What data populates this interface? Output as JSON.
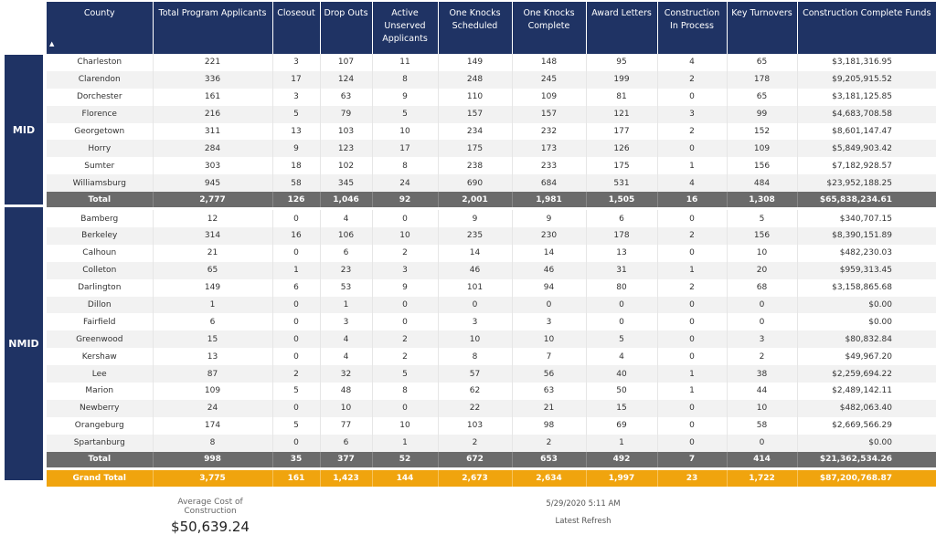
{
  "groups": {
    "mid": "MID",
    "nmid": "NMID"
  },
  "columns": [
    "County",
    "Total Program Applicants",
    "Closeout",
    "Drop Outs",
    "Active Unserved Applicants",
    "One Knocks Scheduled",
    "One Knocks Complete",
    "Award Letters",
    "Construction In Process",
    "Key Turnovers",
    "Construction Complete Funds"
  ],
  "sort_indicator": "▲",
  "mid_rows": [
    [
      "Charleston",
      "221",
      "3",
      "107",
      "11",
      "149",
      "148",
      "95",
      "4",
      "65",
      "$3,181,316.95"
    ],
    [
      "Clarendon",
      "336",
      "17",
      "124",
      "8",
      "248",
      "245",
      "199",
      "2",
      "178",
      "$9,205,915.52"
    ],
    [
      "Dorchester",
      "161",
      "3",
      "63",
      "9",
      "110",
      "109",
      "81",
      "0",
      "65",
      "$3,181,125.85"
    ],
    [
      "Florence",
      "216",
      "5",
      "79",
      "5",
      "157",
      "157",
      "121",
      "3",
      "99",
      "$4,683,708.58"
    ],
    [
      "Georgetown",
      "311",
      "13",
      "103",
      "10",
      "234",
      "232",
      "177",
      "2",
      "152",
      "$8,601,147.47"
    ],
    [
      "Horry",
      "284",
      "9",
      "123",
      "17",
      "175",
      "173",
      "126",
      "0",
      "109",
      "$5,849,903.42"
    ],
    [
      "Sumter",
      "303",
      "18",
      "102",
      "8",
      "238",
      "233",
      "175",
      "1",
      "156",
      "$7,182,928.57"
    ],
    [
      "Williamsburg",
      "945",
      "58",
      "345",
      "24",
      "690",
      "684",
      "531",
      "4",
      "484",
      "$23,952,188.25"
    ]
  ],
  "mid_total": [
    "Total",
    "2,777",
    "126",
    "1,046",
    "92",
    "2,001",
    "1,981",
    "1,505",
    "16",
    "1,308",
    "$65,838,234.61"
  ],
  "nmid_rows": [
    [
      "Bamberg",
      "12",
      "0",
      "4",
      "0",
      "9",
      "9",
      "6",
      "0",
      "5",
      "$340,707.15"
    ],
    [
      "Berkeley",
      "314",
      "16",
      "106",
      "10",
      "235",
      "230",
      "178",
      "2",
      "156",
      "$8,390,151.89"
    ],
    [
      "Calhoun",
      "21",
      "0",
      "6",
      "2",
      "14",
      "14",
      "13",
      "0",
      "10",
      "$482,230.03"
    ],
    [
      "Colleton",
      "65",
      "1",
      "23",
      "3",
      "46",
      "46",
      "31",
      "1",
      "20",
      "$959,313.45"
    ],
    [
      "Darlington",
      "149",
      "6",
      "53",
      "9",
      "101",
      "94",
      "80",
      "2",
      "68",
      "$3,158,865.68"
    ],
    [
      "Dillon",
      "1",
      "0",
      "1",
      "0",
      "0",
      "0",
      "0",
      "0",
      "0",
      "$0.00"
    ],
    [
      "Fairfield",
      "6",
      "0",
      "3",
      "0",
      "3",
      "3",
      "0",
      "0",
      "0",
      "$0.00"
    ],
    [
      "Greenwood",
      "15",
      "0",
      "4",
      "2",
      "10",
      "10",
      "5",
      "0",
      "3",
      "$80,832.84"
    ],
    [
      "Kershaw",
      "13",
      "0",
      "4",
      "2",
      "8",
      "7",
      "4",
      "0",
      "2",
      "$49,967.20"
    ],
    [
      "Lee",
      "87",
      "2",
      "32",
      "5",
      "57",
      "56",
      "40",
      "1",
      "38",
      "$2,259,694.22"
    ],
    [
      "Marion",
      "109",
      "5",
      "48",
      "8",
      "62",
      "63",
      "50",
      "1",
      "44",
      "$2,489,142.11"
    ],
    [
      "Newberry",
      "24",
      "0",
      "10",
      "0",
      "22",
      "21",
      "15",
      "0",
      "10",
      "$482,063.40"
    ],
    [
      "Orangeburg",
      "174",
      "5",
      "77",
      "10",
      "103",
      "98",
      "69",
      "0",
      "58",
      "$2,669,566.29"
    ],
    [
      "Spartanburg",
      "8",
      "0",
      "6",
      "1",
      "2",
      "2",
      "1",
      "0",
      "0",
      "$0.00"
    ]
  ],
  "nmid_total": [
    "Total",
    "998",
    "35",
    "377",
    "52",
    "672",
    "653",
    "492",
    "7",
    "414",
    "$21,362,534.26"
  ],
  "grand_total": [
    "Grand Total",
    "3,775",
    "161",
    "1,423",
    "144",
    "2,673",
    "2,634",
    "1,997",
    "23",
    "1,722",
    "$87,200,768.87"
  ],
  "kpi": {
    "label": "Average Cost of Construction",
    "value": "$50,639.24"
  },
  "refresh": {
    "timestamp": "5/29/2020 5:11 AM",
    "label": "Latest Refresh"
  },
  "colors": {
    "header": "#1f3364",
    "subtotal": "#6b6b6b",
    "grand_total": "#f0a40e"
  }
}
